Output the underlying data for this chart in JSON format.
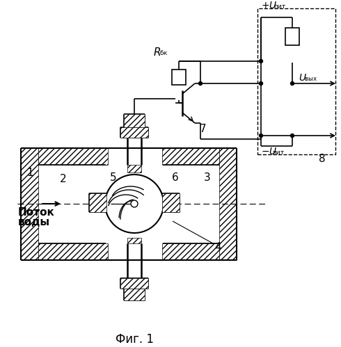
{
  "title": "Фиг. 1",
  "label_potok_1": "Поток",
  "label_potok_2": "воды",
  "label_1": "1",
  "label_2": "2",
  "label_3": "3",
  "label_4": "4",
  "label_5": "5",
  "label_6": "6",
  "label_7": "7",
  "label_8": "8",
  "bg_color": "#ffffff"
}
